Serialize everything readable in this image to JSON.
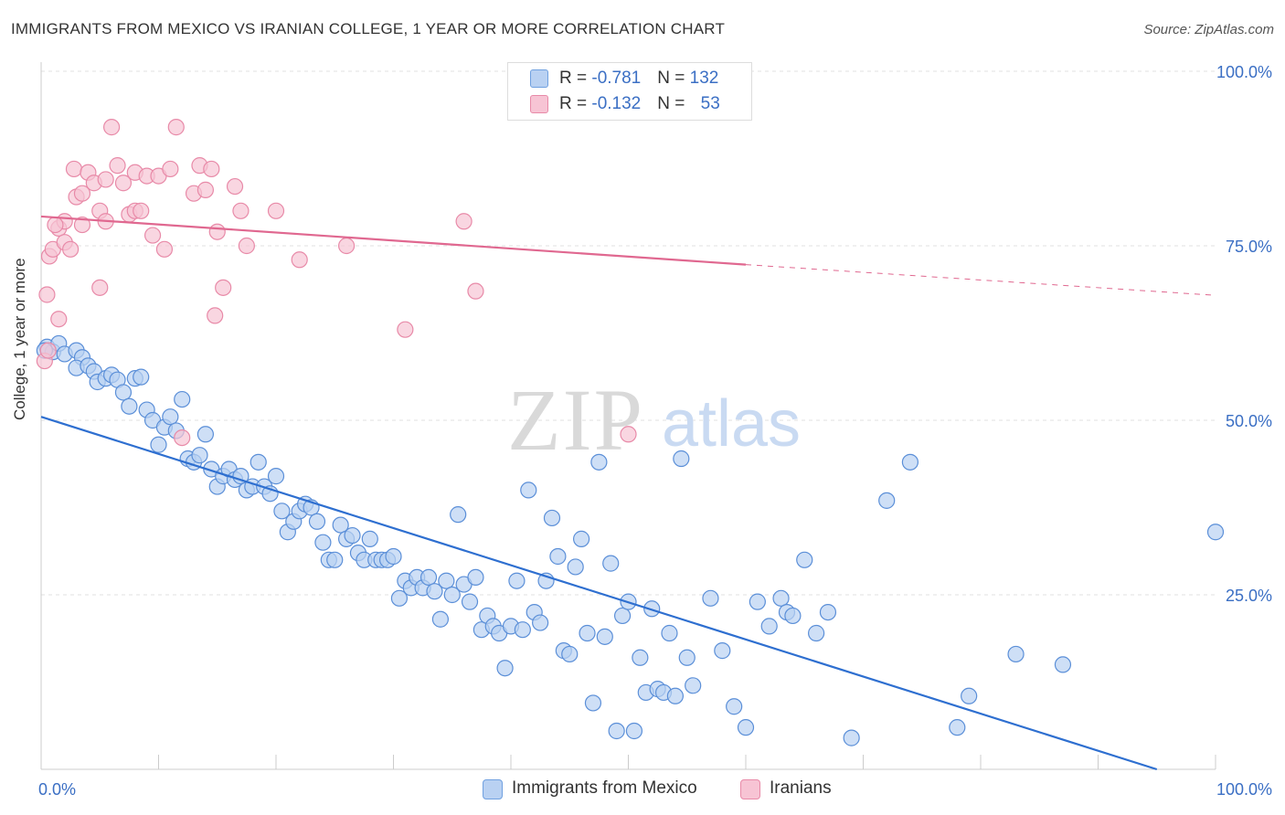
{
  "header": {
    "title": "IMMIGRANTS FROM MEXICO VS IRANIAN COLLEGE, 1 YEAR OR MORE CORRELATION CHART",
    "source": "Source: ZipAtlas.com"
  },
  "watermark": {
    "zip": "ZIP",
    "atlas": "atlas"
  },
  "legend": {
    "rows": [
      {
        "r_label": "R = ",
        "r_value": "-0.781",
        "n_label": "N = ",
        "n_value": "132",
        "color": "#6fa0e0",
        "fill": "#b9d1f2"
      },
      {
        "r_label": "R = ",
        "r_value": "-0.132",
        "n_label": "N = ",
        "n_value": "53",
        "color": "#e88aa8",
        "fill": "#f7c4d4"
      }
    ]
  },
  "bottom_legend": {
    "items": [
      {
        "label": "Immigrants from Mexico",
        "fill": "#b9d1f2",
        "color": "#6fa0e0"
      },
      {
        "label": "Iranians",
        "fill": "#f7c4d4",
        "color": "#e88aa8"
      }
    ]
  },
  "chart_data": {
    "type": "scatter",
    "ylabel": "College, 1 year or more",
    "xlim": [
      0,
      100
    ],
    "ylim": [
      0,
      100
    ],
    "x_tick_labels": [
      "0.0%",
      "100.0%"
    ],
    "y_tick_labels": [
      "100.0%",
      "75.0%",
      "50.0%",
      "25.0%"
    ],
    "y_ticks": [
      100,
      75,
      50,
      25
    ],
    "grid": true,
    "series": [
      {
        "name": "Immigrants from Mexico",
        "color": "#5b8fd8",
        "fill": "#b9d1f2",
        "trend": {
          "x": [
            0,
            95
          ],
          "y": [
            50.5,
            0
          ],
          "color": "#2e6fd0"
        },
        "points": [
          [
            0.5,
            60.5
          ],
          [
            1.0,
            59.8
          ],
          [
            1.5,
            61.0
          ],
          [
            2.0,
            59.5
          ],
          [
            3.0,
            60.0
          ],
          [
            3.5,
            59.0
          ],
          [
            3.0,
            57.5
          ],
          [
            4.0,
            57.8
          ],
          [
            4.5,
            57.0
          ],
          [
            4.8,
            55.5
          ],
          [
            5.5,
            56.0
          ],
          [
            6.0,
            56.5
          ],
          [
            6.5,
            55.8
          ],
          [
            7.0,
            54.0
          ],
          [
            7.5,
            52.0
          ],
          [
            8.0,
            56.0
          ],
          [
            8.5,
            56.2
          ],
          [
            9.0,
            51.5
          ],
          [
            9.5,
            50.0
          ],
          [
            10.0,
            46.5
          ],
          [
            10.5,
            49.0
          ],
          [
            11.0,
            50.5
          ],
          [
            11.5,
            48.5
          ],
          [
            12.0,
            53.0
          ],
          [
            12.5,
            44.5
          ],
          [
            13.0,
            44.0
          ],
          [
            13.5,
            45.0
          ],
          [
            14.0,
            48.0
          ],
          [
            14.5,
            43.0
          ],
          [
            15.0,
            40.5
          ],
          [
            15.5,
            42.0
          ],
          [
            16.0,
            43.0
          ],
          [
            16.5,
            41.5
          ],
          [
            17.0,
            42.0
          ],
          [
            17.5,
            40.0
          ],
          [
            18.0,
            40.5
          ],
          [
            18.5,
            44.0
          ],
          [
            19.0,
            40.5
          ],
          [
            19.5,
            39.5
          ],
          [
            20.0,
            42.0
          ],
          [
            20.5,
            37.0
          ],
          [
            21.0,
            34.0
          ],
          [
            21.5,
            35.5
          ],
          [
            22.0,
            37.0
          ],
          [
            22.5,
            38.0
          ],
          [
            23.0,
            37.5
          ],
          [
            23.5,
            35.5
          ],
          [
            24.0,
            32.5
          ],
          [
            24.5,
            30.0
          ],
          [
            25.0,
            30.0
          ],
          [
            25.5,
            35.0
          ],
          [
            26.0,
            33.0
          ],
          [
            26.5,
            33.5
          ],
          [
            27.0,
            31.0
          ],
          [
            27.5,
            30.0
          ],
          [
            28.0,
            33.0
          ],
          [
            28.5,
            30.0
          ],
          [
            29.0,
            30.0
          ],
          [
            29.5,
            30.0
          ],
          [
            30.0,
            30.5
          ],
          [
            30.5,
            24.5
          ],
          [
            31.0,
            27.0
          ],
          [
            31.5,
            26.0
          ],
          [
            32.0,
            27.5
          ],
          [
            32.5,
            26.0
          ],
          [
            33.0,
            27.5
          ],
          [
            33.5,
            25.5
          ],
          [
            34.0,
            21.5
          ],
          [
            34.5,
            27.0
          ],
          [
            35.0,
            25.0
          ],
          [
            35.5,
            36.5
          ],
          [
            36.0,
            26.5
          ],
          [
            36.5,
            24.0
          ],
          [
            37.0,
            27.5
          ],
          [
            37.5,
            20.0
          ],
          [
            38.0,
            22.0
          ],
          [
            38.5,
            20.5
          ],
          [
            39.0,
            19.5
          ],
          [
            39.5,
            14.5
          ],
          [
            40.0,
            20.5
          ],
          [
            40.5,
            27.0
          ],
          [
            41.0,
            20.0
          ],
          [
            41.5,
            40.0
          ],
          [
            42.0,
            22.5
          ],
          [
            42.5,
            21.0
          ],
          [
            43.0,
            27.0
          ],
          [
            43.5,
            36.0
          ],
          [
            44.0,
            30.5
          ],
          [
            44.5,
            17.0
          ],
          [
            45.0,
            16.5
          ],
          [
            45.5,
            29.0
          ],
          [
            46.0,
            33.0
          ],
          [
            46.5,
            19.5
          ],
          [
            47.0,
            9.5
          ],
          [
            47.5,
            44.0
          ],
          [
            48.0,
            19.0
          ],
          [
            48.5,
            29.5
          ],
          [
            49.0,
            5.5
          ],
          [
            49.5,
            22.0
          ],
          [
            50.0,
            24.0
          ],
          [
            50.5,
            5.5
          ],
          [
            51.0,
            16.0
          ],
          [
            51.5,
            11.0
          ],
          [
            52.0,
            23.0
          ],
          [
            52.5,
            11.5
          ],
          [
            53.0,
            11.0
          ],
          [
            53.5,
            19.5
          ],
          [
            54.0,
            10.5
          ],
          [
            54.5,
            44.5
          ],
          [
            55.0,
            16.0
          ],
          [
            55.5,
            12.0
          ],
          [
            57.0,
            24.5
          ],
          [
            58.0,
            17.0
          ],
          [
            59.0,
            9.0
          ],
          [
            60.0,
            6.0
          ],
          [
            61.0,
            24.0
          ],
          [
            62.0,
            20.5
          ],
          [
            63.0,
            24.5
          ],
          [
            63.5,
            22.5
          ],
          [
            64.0,
            22.0
          ],
          [
            65.0,
            30.0
          ],
          [
            66.0,
            19.5
          ],
          [
            67.0,
            22.5
          ],
          [
            69.0,
            4.5
          ],
          [
            72.0,
            38.5
          ],
          [
            74.0,
            44.0
          ],
          [
            78.0,
            6.0
          ],
          [
            79.0,
            10.5
          ],
          [
            83.0,
            16.5
          ],
          [
            87.0,
            15.0
          ],
          [
            100.0,
            34.0
          ],
          [
            0.3,
            60.0
          ]
        ]
      },
      {
        "name": "Iranians",
        "color": "#e88aa8",
        "fill": "#f7c4d4",
        "trend": {
          "x": [
            0,
            60
          ],
          "y": [
            79.2,
            72.3
          ],
          "dash_x": [
            60,
            100
          ],
          "dash_y": [
            72.3,
            67.9
          ],
          "color": "#e06890"
        },
        "points": [
          [
            0.3,
            58.5
          ],
          [
            0.5,
            68.0
          ],
          [
            0.7,
            73.5
          ],
          [
            1.0,
            74.5
          ],
          [
            1.5,
            77.5
          ],
          [
            1.5,
            64.5
          ],
          [
            2.0,
            78.5
          ],
          [
            2.0,
            75.5
          ],
          [
            2.5,
            74.5
          ],
          [
            2.8,
            86.0
          ],
          [
            3.0,
            82.0
          ],
          [
            3.5,
            78.0
          ],
          [
            3.5,
            82.5
          ],
          [
            4.0,
            85.5
          ],
          [
            4.5,
            84.0
          ],
          [
            5.0,
            80.0
          ],
          [
            5.0,
            69.0
          ],
          [
            5.5,
            78.5
          ],
          [
            5.5,
            84.5
          ],
          [
            6.0,
            92.0
          ],
          [
            6.5,
            86.5
          ],
          [
            7.0,
            84.0
          ],
          [
            7.5,
            79.5
          ],
          [
            8.0,
            80.0
          ],
          [
            8.0,
            85.5
          ],
          [
            8.5,
            80.0
          ],
          [
            9.0,
            85.0
          ],
          [
            9.5,
            76.5
          ],
          [
            10.0,
            85.0
          ],
          [
            10.5,
            74.5
          ],
          [
            11.0,
            86.0
          ],
          [
            11.5,
            92.0
          ],
          [
            12.0,
            47.5
          ],
          [
            13.0,
            82.5
          ],
          [
            13.5,
            86.5
          ],
          [
            14.0,
            83.0
          ],
          [
            14.5,
            86.0
          ],
          [
            14.8,
            65.0
          ],
          [
            15.0,
            77.0
          ],
          [
            15.5,
            69.0
          ],
          [
            16.5,
            83.5
          ],
          [
            17.0,
            80.0
          ],
          [
            17.5,
            75.0
          ],
          [
            20.0,
            80.0
          ],
          [
            22.0,
            73.0
          ],
          [
            26.0,
            75.0
          ],
          [
            31.0,
            63.0
          ],
          [
            36.0,
            78.5
          ],
          [
            37.0,
            68.5
          ],
          [
            50.0,
            48.0
          ],
          [
            52.0,
            100.0
          ],
          [
            0.6,
            60.0
          ],
          [
            1.2,
            78.0
          ]
        ]
      }
    ]
  }
}
